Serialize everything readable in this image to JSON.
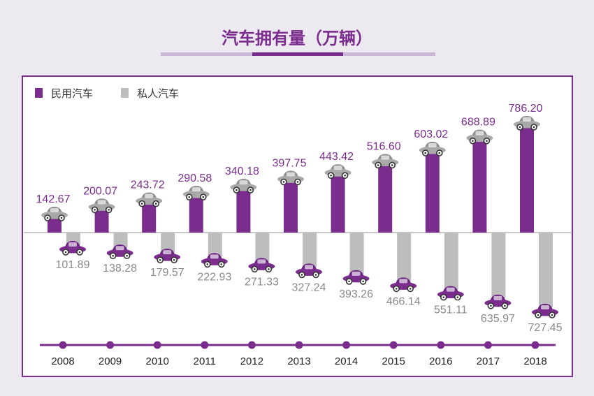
{
  "chart_data": {
    "type": "bar",
    "title": "汽车拥有量（万辆）",
    "categories": [
      "2008",
      "2009",
      "2010",
      "2011",
      "2012",
      "2013",
      "2014",
      "2015",
      "2016",
      "2017",
      "2018"
    ],
    "series": [
      {
        "name": "民用汽车",
        "direction": "up",
        "color": "#7b2d8e",
        "values": [
          142.67,
          200.07,
          243.72,
          290.58,
          340.18,
          397.75,
          443.42,
          516.6,
          603.02,
          688.89,
          786.2
        ],
        "labels": [
          "142.67",
          "200.07",
          "243.72",
          "290.58",
          "340.18",
          "397.75",
          "443.42",
          "516.60",
          "603.02",
          "688.89",
          "786.20"
        ]
      },
      {
        "name": "私人汽车",
        "direction": "down",
        "color": "#bdbdbd",
        "values": [
          101.89,
          138.28,
          179.57,
          222.93,
          271.33,
          327.24,
          393.26,
          466.14,
          551.11,
          635.97,
          727.45
        ],
        "labels": [
          "101.89",
          "138.28",
          "179.57",
          "222.93",
          "271.33",
          "327.24",
          "393.26",
          "466.14",
          "551.11",
          "635.97",
          "727.45"
        ]
      }
    ],
    "legend_position": "top-left",
    "grid": false,
    "ylim": [
      0,
      800
    ]
  },
  "colors": {
    "background": "#ede9f1",
    "panel": "#ffffff",
    "border": "#7b2d8e",
    "accent": "#7b2d8e",
    "grey_bar": "#bdbdbd",
    "grey_label": "#8a8a8a",
    "baseline": "#c8c8c8",
    "title_underline": "#c9b8d6"
  },
  "icons": {
    "up_series_cap": "car-icon-grey",
    "down_series_cap": "car-icon-purple",
    "timeline_marker": "timeline-dot"
  }
}
